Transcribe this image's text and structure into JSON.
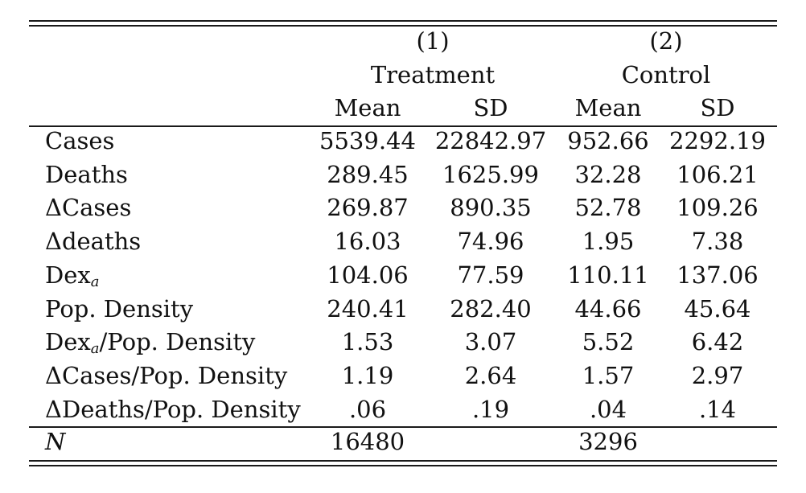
{
  "table": {
    "group_numbers": [
      "(1)",
      "(2)"
    ],
    "group_names": [
      "Treatment",
      "Control"
    ],
    "stat_headers": [
      "Mean",
      "SD",
      "Mean",
      "SD"
    ],
    "rows": [
      {
        "label": "Cases",
        "values": [
          "5539.44",
          "22842.97",
          "952.66",
          "2292.19"
        ]
      },
      {
        "label": "Deaths",
        "values": [
          "289.45",
          "1625.99",
          "32.28",
          "106.21"
        ]
      },
      {
        "label": "ΔCases",
        "values": [
          "269.87",
          "890.35",
          "52.78",
          "109.26"
        ]
      },
      {
        "label": "Δdeaths",
        "values": [
          "16.03",
          "74.96",
          "1.95",
          "7.38"
        ]
      },
      {
        "label": "Dex",
        "subscript": "a",
        "suffix": "",
        "values": [
          "104.06",
          "77.59",
          "110.11",
          "137.06"
        ]
      },
      {
        "label": "Pop. Density",
        "values": [
          "240.41",
          "282.40",
          "44.66",
          "45.64"
        ]
      },
      {
        "label": "Dex",
        "subscript": "a",
        "suffix": "/Pop. Density",
        "values": [
          "1.53",
          "3.07",
          "5.52",
          "6.42"
        ]
      },
      {
        "label": "ΔCases/Pop. Density",
        "values": [
          "1.19",
          "2.64",
          "1.57",
          "2.97"
        ]
      },
      {
        "label": "ΔDeaths/Pop. Density",
        "values": [
          ".06",
          ".19",
          ".04",
          ".14"
        ]
      }
    ],
    "n_row": {
      "label": "N",
      "values": [
        "16480",
        "3296"
      ]
    }
  }
}
